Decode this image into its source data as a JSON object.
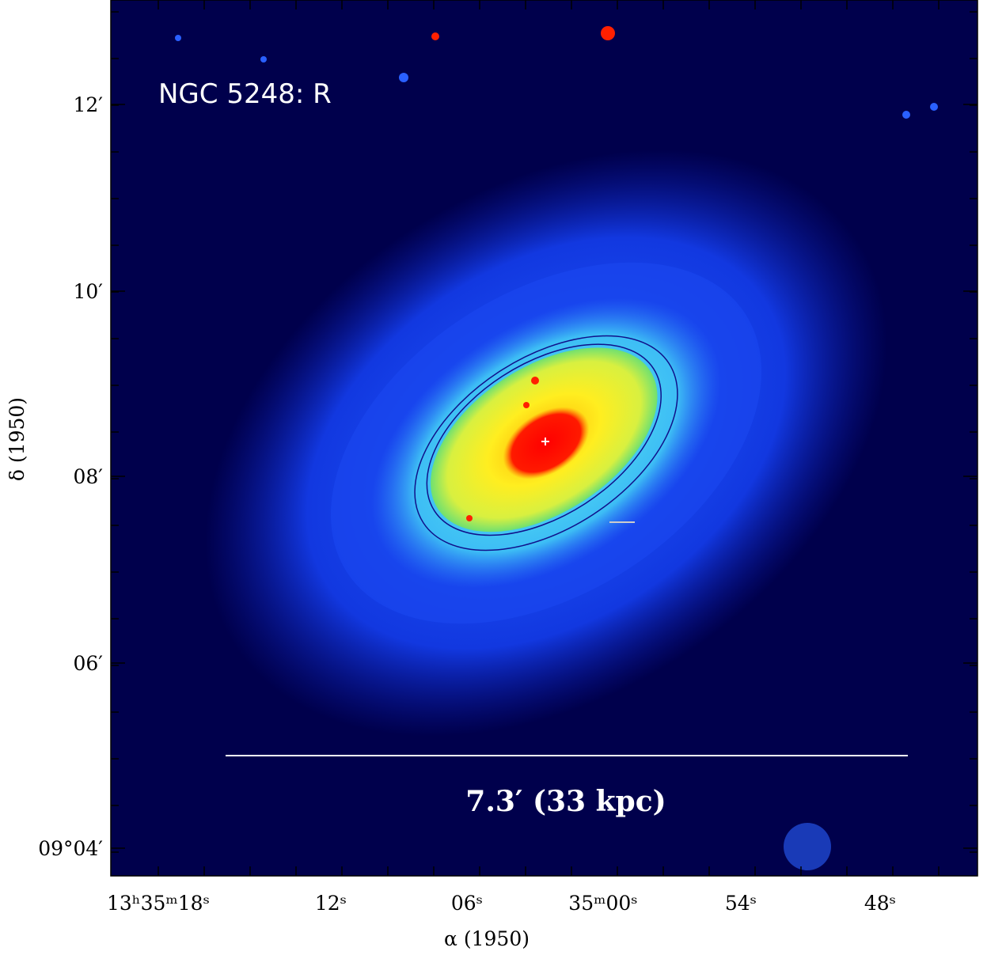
{
  "image": {
    "label": "NGC 5248: R"
  },
  "scale_bar": {
    "label": "7.3′ (33 kpc)"
  },
  "x_axis": {
    "label": "α (1950)",
    "ticks": [
      "13ʰ35ᵐ18ˢ",
      "12ˢ",
      "06ˢ",
      "35ᵐ00ˢ",
      "54ˢ",
      "48ˢ"
    ]
  },
  "y_axis": {
    "label": "δ (1950)",
    "ticks": [
      "12′",
      "10′",
      "08′",
      "06′",
      "09°04′"
    ]
  }
}
